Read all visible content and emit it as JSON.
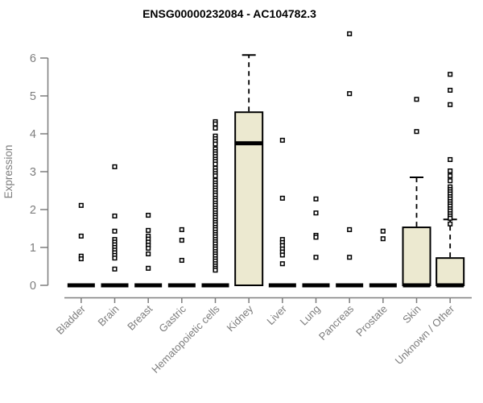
{
  "title": "ENSG00000232084 - AC104782.3",
  "chart_data": {
    "type": "boxplot",
    "title": "ENSG00000232084 - AC104782.3",
    "xlabel": "",
    "ylabel": "Expression",
    "ylim": [
      0,
      6.7
    ],
    "yticks": [
      0,
      1,
      2,
      3,
      4,
      5,
      6
    ],
    "grid": false,
    "legend": false,
    "box_fill_color": "#ece9d0",
    "box_border_color": "#000000",
    "axis_color": "#7d7d7d",
    "point_style": "open-square",
    "categories": [
      "Bladder",
      "Brain",
      "Breast",
      "Gastric",
      "Hematopoietic cells",
      "Kidney",
      "Liver",
      "Lung",
      "Pancreas",
      "Prostate",
      "Skin",
      "Unknown / Other"
    ],
    "series": [
      {
        "label": "Bladder",
        "collapsed": true,
        "median": 0,
        "q1": 0,
        "q3": 0,
        "whisker_low": 0,
        "whisker_high": 0,
        "points": [
          2.11,
          1.3,
          0.77,
          0.7
        ]
      },
      {
        "label": "Brain",
        "collapsed": true,
        "median": 0,
        "q1": 0,
        "q3": 0,
        "whisker_low": 0,
        "whisker_high": 0,
        "points": [
          3.13,
          1.83,
          1.43,
          1.21,
          1.14,
          1.07,
          1.0,
          0.93,
          0.86,
          0.79,
          0.72,
          0.43
        ]
      },
      {
        "label": "Breast",
        "collapsed": true,
        "median": 0,
        "q1": 0,
        "q3": 0,
        "whisker_low": 0,
        "whisker_high": 0,
        "points": [
          1.85,
          1.45,
          1.3,
          1.22,
          1.14,
          1.06,
          0.98,
          0.83,
          0.45
        ]
      },
      {
        "label": "Gastric",
        "collapsed": true,
        "median": 0,
        "q1": 0,
        "q3": 0,
        "whisker_low": 0,
        "whisker_high": 0,
        "points": [
          1.47,
          1.19,
          0.66
        ]
      },
      {
        "label": "Hematopoietic cells",
        "collapsed": true,
        "median": 0,
        "q1": 0,
        "q3": 0,
        "whisker_low": 0,
        "whisker_high": 0,
        "points": [
          4.32,
          4.26,
          4.15,
          3.94,
          3.87,
          3.8,
          3.73,
          3.6,
          3.53,
          3.47,
          3.4,
          3.33,
          3.27,
          3.2,
          3.09,
          3.02,
          2.95,
          2.89,
          2.77,
          2.7,
          2.64,
          2.57,
          2.51,
          2.44,
          2.38,
          2.3,
          2.24,
          2.17,
          2.11,
          2.04,
          1.98,
          1.91,
          1.85,
          1.79,
          1.72,
          1.66,
          1.6,
          1.53,
          1.47,
          1.4,
          1.34,
          1.28,
          1.21,
          1.15,
          1.09,
          1.02,
          0.96,
          0.89,
          0.83,
          0.77,
          0.7,
          0.64,
          0.57,
          0.51,
          0.45,
          0.4
        ]
      },
      {
        "label": "Kidney",
        "collapsed": false,
        "median": 3.75,
        "q1": 0,
        "q3": 4.57,
        "whisker_low": 0,
        "whisker_high": 6.08,
        "points": []
      },
      {
        "label": "Liver",
        "collapsed": true,
        "median": 0,
        "q1": 0,
        "q3": 0,
        "whisker_low": 0,
        "whisker_high": 0,
        "points": [
          3.83,
          2.3,
          1.21,
          1.13,
          1.05,
          0.96,
          0.88,
          0.8,
          0.57
        ]
      },
      {
        "label": "Lung",
        "collapsed": true,
        "median": 0,
        "q1": 0,
        "q3": 0,
        "whisker_low": 0,
        "whisker_high": 0,
        "points": [
          2.28,
          1.91,
          1.32,
          1.27,
          0.74
        ]
      },
      {
        "label": "Pancreas",
        "collapsed": true,
        "median": 0,
        "q1": 0,
        "q3": 0,
        "whisker_low": 0,
        "whisker_high": 0,
        "points": [
          6.64,
          5.06,
          1.47,
          0.74
        ]
      },
      {
        "label": "Prostate",
        "collapsed": true,
        "median": 0,
        "q1": 0,
        "q3": 0,
        "whisker_low": 0,
        "whisker_high": 0,
        "points": [
          1.43,
          1.23
        ]
      },
      {
        "label": "Skin",
        "collapsed": false,
        "median": 0,
        "q1": 0,
        "q3": 1.53,
        "whisker_low": 0,
        "whisker_high": 2.85,
        "points": [
          4.91,
          4.06
        ]
      },
      {
        "label": "Unknown / Other",
        "collapsed": false,
        "median": 0,
        "q1": 0,
        "q3": 0.72,
        "whisker_low": 0,
        "whisker_high": 1.74,
        "points": [
          5.57,
          5.15,
          4.77,
          3.32,
          3.02,
          2.89,
          2.76,
          2.6,
          2.53,
          2.47,
          2.41,
          2.34,
          2.28,
          2.21,
          2.15,
          2.09,
          2.02,
          1.96,
          1.89,
          1.83,
          1.77,
          1.62
        ]
      }
    ]
  }
}
